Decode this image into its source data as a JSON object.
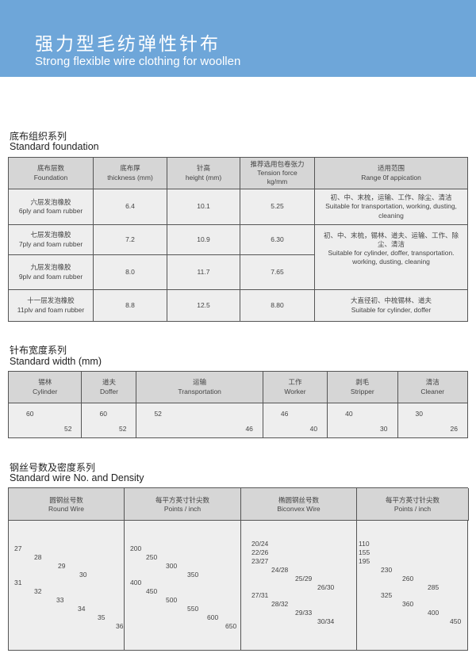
{
  "header": {
    "title": "强力型毛纺弹性针布",
    "subtitle": "Strong flexible wire clothing for woollen",
    "color": "#6ea6d9"
  },
  "foundation": {
    "title_cn": "底布组织系列",
    "title_en": "Standard foundation",
    "columns": [
      [
        "底布层数",
        "Foundation"
      ],
      [
        "底布厚",
        "thickness (mm)"
      ],
      [
        "针高",
        "height (mm)"
      ],
      [
        "推荐选用包卷张力",
        "Tension force",
        "kg/mm"
      ],
      [
        "适用范围",
        "Range 0f appication"
      ]
    ],
    "rows": [
      {
        "cn": "六层发泡橡胶",
        "en": "6ply and foam rubber",
        "thickness": "6.4",
        "height": "10.1",
        "tension": "5.25"
      },
      {
        "cn": "七层发泡橡胶",
        "en": "7ply and foam rubber",
        "thickness": "7.2",
        "height": "10.9",
        "tension": "6.30"
      },
      {
        "cn": "九层发泡橡胶",
        "en": "9plv and foam rubber",
        "thickness": "8.0",
        "height": "11.7",
        "tension": "7.65"
      },
      {
        "cn": "十一层发泡橡胶",
        "en": "11plv and foam rubber",
        "thickness": "8.8",
        "height": "12.5",
        "tension": "8.80"
      }
    ],
    "ranges": [
      {
        "cn": "初、中、末梳，运输、工作、除尘、清洁",
        "en": "Suitable for transportation, working, dusting, cleaning"
      },
      {
        "cn": "初、中、末梳，锡林、道夫、运输、工作、除尘、清洁",
        "en": "Suitable for cylinder, doffer, transportation. working, dusting, cleaning"
      },
      {
        "cn": "大直径初、中梳锡林、道夫",
        "en": "Suitable for cylinder, doffer"
      }
    ]
  },
  "width": {
    "title_cn": "针布宽度系列",
    "title_en": "Standard width (mm)",
    "columns": [
      {
        "cn": "锡林",
        "en": "Cylinder",
        "a": "60",
        "b": "52"
      },
      {
        "cn": "道夫",
        "en": "Doffer",
        "a": "60",
        "b": "52"
      },
      {
        "cn": "运输",
        "en": "Transportation",
        "a": "52",
        "b": "46"
      },
      {
        "cn": "工作",
        "en": "Worker",
        "a": "46",
        "b": "40"
      },
      {
        "cn": "剥毛",
        "en": "Stripper",
        "a": "40",
        "b": "30"
      },
      {
        "cn": "清洁",
        "en": "Cleaner",
        "a": "30",
        "b": "26"
      }
    ]
  },
  "wire": {
    "title_cn": "钢丝号数及密度系列",
    "title_en": "Standard wire No. and Density",
    "columns": [
      {
        "cn": "圆钢丝号数",
        "en": "Round Wire",
        "values": [
          "27",
          "28",
          "29",
          "30",
          "31",
          "32",
          "33",
          "34",
          "35",
          "36"
        ]
      },
      {
        "cn": "每平方英寸针尖数",
        "en": "Points / inch",
        "values": [
          "200",
          "250",
          "300",
          "350",
          "400",
          "450",
          "500",
          "550",
          "600",
          "650"
        ]
      },
      {
        "cn": "椭圆钢丝号数",
        "en": "Biconvex Wire",
        "values": [
          "20/24",
          "22/26",
          "23/27",
          "24/28",
          "25/29",
          "26/30",
          "27/31",
          "28/32",
          "29/33",
          "30/34"
        ]
      },
      {
        "cn": "每平方英寸针尖数",
        "en": "Points / inch",
        "values": [
          "110",
          "155",
          "195",
          "230",
          "260",
          "285",
          "325",
          "360",
          "400",
          "450"
        ]
      }
    ]
  }
}
